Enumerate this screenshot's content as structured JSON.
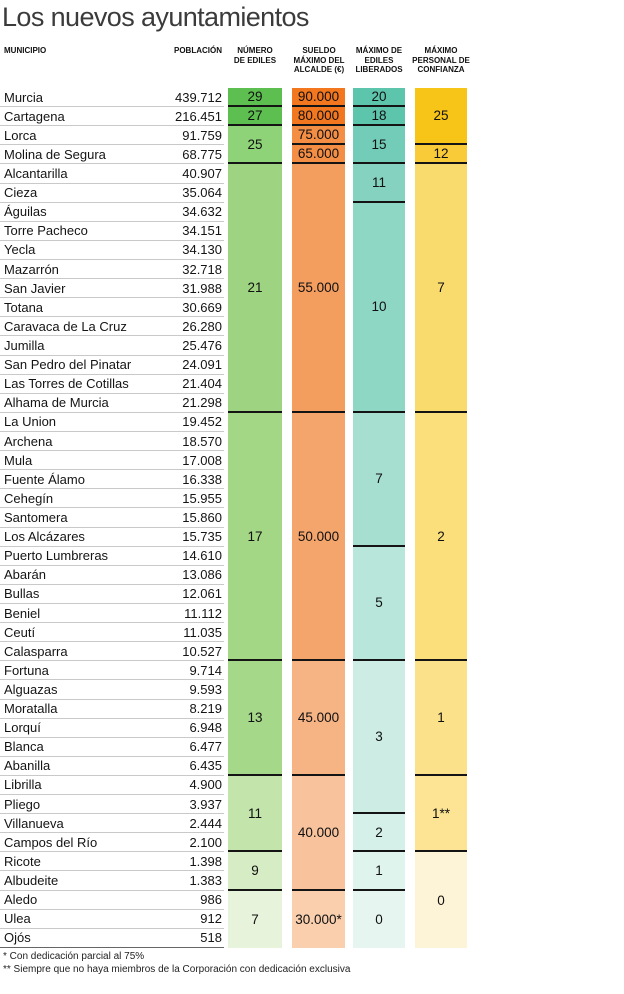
{
  "title": "Los nuevos ayuntamientos",
  "headers": {
    "municipio": "MUNICIPIO",
    "poblacion": "POBLACIÓN",
    "ediles": "NÚMERO\nDE EDILES",
    "sueldo": "SUELDO\nMÁXIMO DEL\nALCALDE (€)",
    "liberados": "MÁXIMO DE\nEDILES\nLIBERADOS",
    "confianza": "MÁXIMO\nPERSONAL DE\nCONFIANZA"
  },
  "chart_data": {
    "type": "table",
    "title": "Los nuevos ayuntamientos",
    "columns": [
      "MUNICIPIO",
      "POBLACIÓN",
      "NÚMERO DE EDILES",
      "SUELDO MÁXIMO DEL ALCALDE (€)",
      "MÁXIMO DE EDILES LIBERADOS",
      "MÁXIMO PERSONAL DE CONFIANZA"
    ],
    "rows": [
      [
        "Murcia",
        "439.712",
        "29",
        "90.000",
        "20",
        "25"
      ],
      [
        "Cartagena",
        "216.451",
        "27",
        "80.000",
        "18",
        "25"
      ],
      [
        "Lorca",
        "91.759",
        "25",
        "75.000",
        "15",
        "25"
      ],
      [
        "Molina de Segura",
        "68.775",
        "25",
        "65.000",
        "15",
        "12"
      ],
      [
        "Alcantarilla",
        "40.907",
        "21",
        "55.000",
        "11",
        "7"
      ],
      [
        "Cieza",
        "35.064",
        "21",
        "55.000",
        "11",
        "7"
      ],
      [
        "Águilas",
        "34.632",
        "21",
        "55.000",
        "10",
        "7"
      ],
      [
        "Torre Pacheco",
        "34.151",
        "21",
        "55.000",
        "10",
        "7"
      ],
      [
        "Yecla",
        "34.130",
        "21",
        "55.000",
        "10",
        "7"
      ],
      [
        "Mazarrón",
        "32.718",
        "21",
        "55.000",
        "10",
        "7"
      ],
      [
        "San Javier",
        "31.988",
        "21",
        "55.000",
        "10",
        "7"
      ],
      [
        "Totana",
        "30.669",
        "21",
        "55.000",
        "10",
        "7"
      ],
      [
        "Caravaca de La Cruz",
        "26.280",
        "21",
        "55.000",
        "10",
        "7"
      ],
      [
        "Jumilla",
        "25.476",
        "21",
        "55.000",
        "10",
        "7"
      ],
      [
        "San Pedro del Pinatar",
        "24.091",
        "21",
        "55.000",
        "10",
        "7"
      ],
      [
        "Las Torres de Cotillas",
        "21.404",
        "21",
        "55.000",
        "10",
        "7"
      ],
      [
        "Alhama de Murcia",
        "21.298",
        "21",
        "55.000",
        "10",
        "7"
      ],
      [
        "La Union",
        "19.452",
        "17",
        "50.000",
        "7",
        "2"
      ],
      [
        "Archena",
        "18.570",
        "17",
        "50.000",
        "7",
        "2"
      ],
      [
        "Mula",
        "17.008",
        "17",
        "50.000",
        "7",
        "2"
      ],
      [
        "Fuente Álamo",
        "16.338",
        "17",
        "50.000",
        "7",
        "2"
      ],
      [
        "Cehegín",
        "15.955",
        "17",
        "50.000",
        "7",
        "2"
      ],
      [
        "Santomera",
        "15.860",
        "17",
        "50.000",
        "7",
        "2"
      ],
      [
        "Los Alcázares",
        "15.735",
        "17",
        "50.000",
        "7",
        "2"
      ],
      [
        "Puerto Lumbreras",
        "14.610",
        "17",
        "50.000",
        "5",
        "2"
      ],
      [
        "Abarán",
        "13.086",
        "17",
        "50.000",
        "5",
        "2"
      ],
      [
        "Bullas",
        "12.061",
        "17",
        "50.000",
        "5",
        "2"
      ],
      [
        "Beniel",
        "11.112",
        "17",
        "50.000",
        "5",
        "2"
      ],
      [
        "Ceutí",
        "11.035",
        "17",
        "50.000",
        "5",
        "2"
      ],
      [
        "Calasparra",
        "10.527",
        "17",
        "50.000",
        "5",
        "2"
      ],
      [
        "Fortuna",
        "9.714",
        "13",
        "45.000",
        "3",
        "1"
      ],
      [
        "Alguazas",
        "9.593",
        "13",
        "45.000",
        "3",
        "1"
      ],
      [
        "Moratalla",
        "8.219",
        "13",
        "45.000",
        "3",
        "1"
      ],
      [
        "Lorquí",
        "6.948",
        "13",
        "45.000",
        "3",
        "1"
      ],
      [
        "Blanca",
        "6.477",
        "13",
        "45.000",
        "3",
        "1"
      ],
      [
        "Abanilla",
        "6.435",
        "13",
        "45.000",
        "3",
        "1"
      ],
      [
        "Librilla",
        "4.900",
        "11",
        "40.000",
        "3",
        "1**"
      ],
      [
        "Pliego",
        "3.937",
        "11",
        "40.000",
        "3",
        "1**"
      ],
      [
        "Villanueva",
        "2.444",
        "11",
        "40.000",
        "2",
        "1**"
      ],
      [
        "Campos del Río",
        "2.100",
        "11",
        "40.000",
        "2",
        "1**"
      ],
      [
        "Ricote",
        "1.398",
        "9",
        "40.000",
        "1",
        "0"
      ],
      [
        "Albudeite",
        "1.383",
        "9",
        "40.000",
        "1",
        "0"
      ],
      [
        "Aledo",
        "986",
        "7",
        "30.000*",
        "0",
        "0"
      ],
      [
        "Ulea",
        "912",
        "7",
        "30.000*",
        "0",
        "0"
      ],
      [
        "Ojós",
        "518",
        "7",
        "30.000*",
        "0",
        "0"
      ]
    ]
  },
  "merged_cells": {
    "ediles": [
      {
        "value": "29",
        "rows": 1,
        "color": "#5dbf4f"
      },
      {
        "value": "27",
        "rows": 1,
        "color": "#5dbf4f"
      },
      {
        "value": "25",
        "rows": 2,
        "color": "#8ed377"
      },
      {
        "value": "21",
        "rows": 13,
        "color": "#9ed481"
      },
      {
        "value": "17",
        "rows": 13,
        "color": "#a3d685"
      },
      {
        "value": "13",
        "rows": 6,
        "color": "#a6d88a"
      },
      {
        "value": "11",
        "rows": 4,
        "color": "#c3e4aa"
      },
      {
        "value": "9",
        "rows": 2,
        "color": "#d6ecc4"
      },
      {
        "value": "7",
        "rows": 3,
        "color": "#e8f3dc"
      }
    ],
    "sueldo": [
      {
        "value": "90.000",
        "rows": 1,
        "color": "#f2771f"
      },
      {
        "value": "80.000",
        "rows": 1,
        "color": "#f2771f"
      },
      {
        "value": "75.000",
        "rows": 1,
        "color": "#f48e45"
      },
      {
        "value": "65.000",
        "rows": 1,
        "color": "#f48e45"
      },
      {
        "value": "55.000",
        "rows": 13,
        "color": "#f39d5f"
      },
      {
        "value": "50.000",
        "rows": 13,
        "color": "#f4a56c"
      },
      {
        "value": "45.000",
        "rows": 6,
        "color": "#f6b485"
      },
      {
        "value": "40.000",
        "rows": 6,
        "color": "#f8c39c"
      },
      {
        "value": "30.000*",
        "rows": 3,
        "color": "#f9cfae"
      }
    ],
    "liberados": [
      {
        "value": "20",
        "rows": 1,
        "color": "#5ec5ad"
      },
      {
        "value": "18",
        "rows": 1,
        "color": "#5ec5ad"
      },
      {
        "value": "15",
        "rows": 2,
        "color": "#72ccb7"
      },
      {
        "value": "11",
        "rows": 2,
        "color": "#84d2bf"
      },
      {
        "value": "10",
        "rows": 11,
        "color": "#8ed7c5"
      },
      {
        "value": "7",
        "rows": 7,
        "color": "#a6ded0"
      },
      {
        "value": "5",
        "rows": 6,
        "color": "#b8e6da"
      },
      {
        "value": "3",
        "rows": 8,
        "color": "#cdece3"
      },
      {
        "value": "2",
        "rows": 2,
        "color": "#d5f0e8"
      },
      {
        "value": "1",
        "rows": 2,
        "color": "#dff4ed"
      },
      {
        "value": "0",
        "rows": 3,
        "color": "#e6f5f0"
      }
    ],
    "confianza": [
      {
        "value": "25",
        "rows": 3,
        "color": "#f7c517"
      },
      {
        "value": "12",
        "rows": 1,
        "color": "#f9cb38"
      },
      {
        "value": "7",
        "rows": 13,
        "color": "#f9db6d"
      },
      {
        "value": "2",
        "rows": 13,
        "color": "#fadf7a"
      },
      {
        "value": "1",
        "rows": 6,
        "color": "#fbe28a"
      },
      {
        "value": "1**",
        "rows": 4,
        "color": "#fce494"
      },
      {
        "value": "0",
        "rows": 5,
        "color": "#fdf3d6"
      }
    ]
  },
  "footnotes": [
    "* Con dedicación parcial al 75%",
    "** Siempre que no haya miembros de la Corporación con dedicación exclusiva"
  ]
}
